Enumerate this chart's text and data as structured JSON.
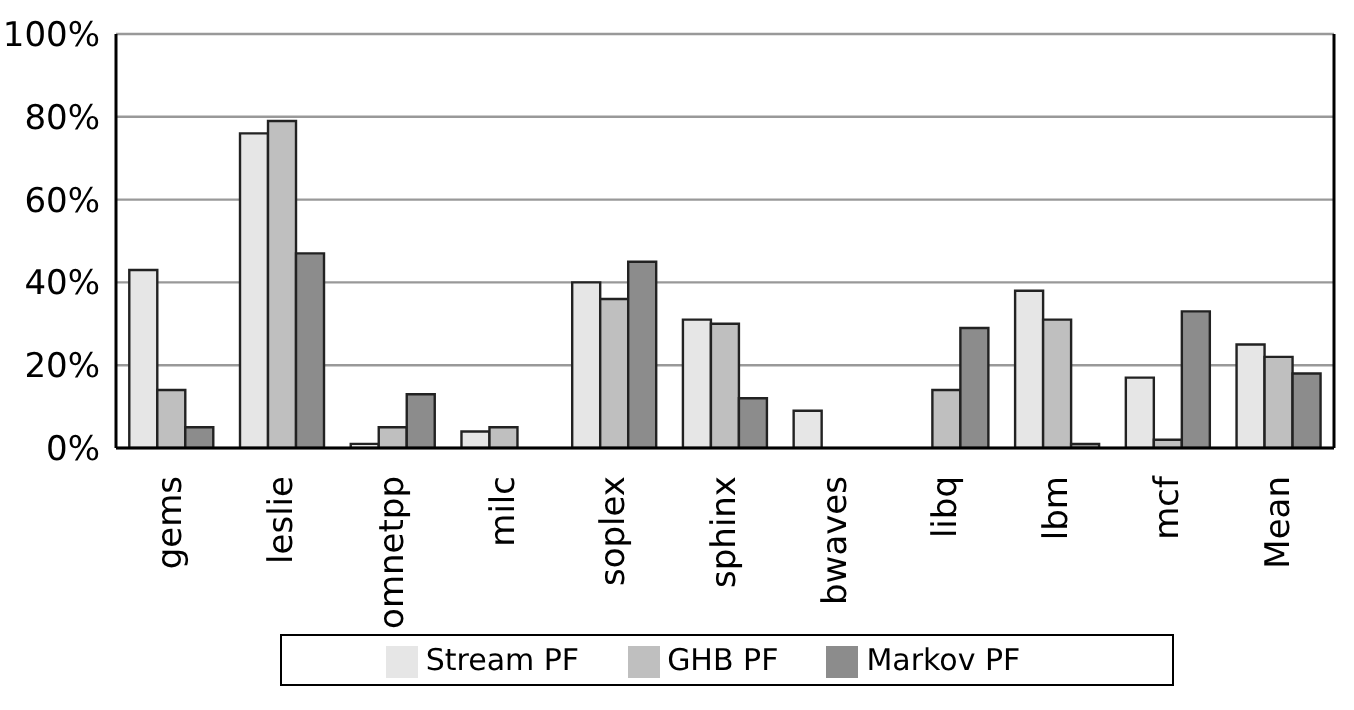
{
  "chart_data": {
    "type": "bar",
    "categories": [
      "gems",
      "leslie",
      "omnetpp",
      "milc",
      "soplex",
      "sphinx",
      "bwaves",
      "libq",
      "lbm",
      "mcf",
      "Mean"
    ],
    "series": [
      {
        "name": "Stream PF",
        "color": "#e6e6e6",
        "values": [
          43,
          76,
          1,
          4,
          40,
          31,
          9,
          0,
          38,
          17,
          25
        ]
      },
      {
        "name": "GHB PF",
        "color": "#bfbfbf",
        "values": [
          14,
          79,
          5,
          5,
          36,
          30,
          0,
          14,
          31,
          2,
          22
        ]
      },
      {
        "name": "Markov PF",
        "color": "#8c8c8c",
        "values": [
          5,
          47,
          13,
          0,
          45,
          12,
          0,
          29,
          1,
          33,
          18
        ]
      }
    ],
    "ylim": [
      0,
      100
    ],
    "yticks": [
      {
        "value": 0,
        "label": "0%"
      },
      {
        "value": 20,
        "label": "20%"
      },
      {
        "value": 40,
        "label": "40%"
      },
      {
        "value": 60,
        "label": "60%"
      },
      {
        "value": 80,
        "label": "80%"
      },
      {
        "value": 100,
        "label": "100%"
      }
    ],
    "grid": "y",
    "legend": "bottom"
  }
}
